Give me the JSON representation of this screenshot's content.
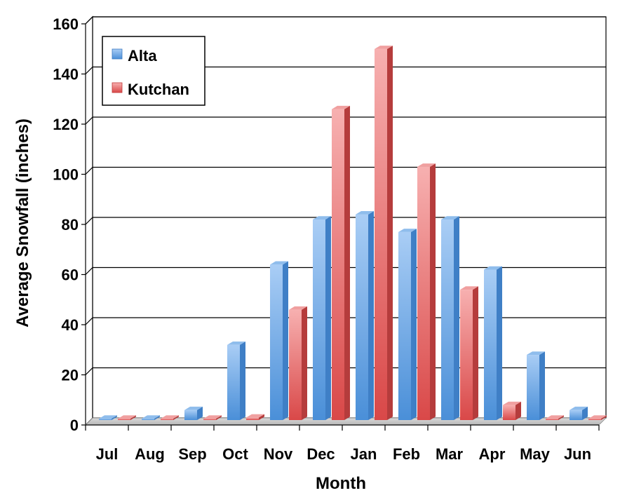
{
  "chart_data": {
    "type": "bar",
    "xlabel": "Month",
    "ylabel": "Average Snowfall (inches)",
    "categories": [
      "Jul",
      "Aug",
      "Sep",
      "Oct",
      "Nov",
      "Dec",
      "Jan",
      "Feb",
      "Mar",
      "Apr",
      "May",
      "Jun"
    ],
    "series": [
      {
        "name": "Alta",
        "values": [
          0,
          0,
          4,
          30,
          62,
          80,
          82,
          75,
          80,
          60,
          26,
          4
        ],
        "color": "#5b9bd5"
      },
      {
        "name": "Kutchan",
        "values": [
          0,
          0,
          0,
          1,
          44,
          124,
          148,
          101,
          52,
          6,
          0,
          0
        ],
        "color": "#e05c5c"
      }
    ],
    "ylim": [
      0,
      160
    ],
    "yticks": [
      0,
      20,
      40,
      60,
      80,
      100,
      120,
      140,
      160
    ],
    "grid": true,
    "legend": "top-left",
    "style": "3d-columns"
  }
}
